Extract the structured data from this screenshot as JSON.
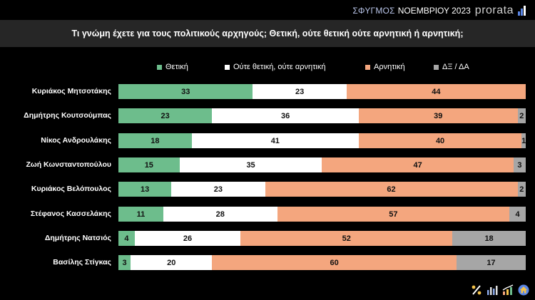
{
  "brand": {
    "prefix": "ΣΦΥΓΜΟΣ",
    "period": "ΝΟΕΜΒΡΙΟΥ 2023",
    "logo": "prorata"
  },
  "colors": {
    "positive": "#6dbd8c",
    "neutral": "#ffffff",
    "negative": "#f4a67e",
    "dk": "#a6a6a6"
  },
  "chart_data": {
    "type": "bar",
    "orientation": "horizontal",
    "stacked": true,
    "title": "Τι γνώμη έχετε για τους πολιτικούς αρχηγούς; Θετική, ούτε θετική ούτε αρνητική ή αρνητική;",
    "legend_position": "top",
    "categories": [
      "Κυριάκος Μητσοτάκης",
      "Δημήτρης Κουτσούμπας",
      "Νίκος Ανδρουλάκης",
      "Ζωή Κωνσταντοπούλου",
      "Κυριάκος Βελόπουλος",
      "Στέφανος Κασσελάκης",
      "Δημήτρης Νατσιός",
      "Βασίλης Στίγκας"
    ],
    "series": [
      {
        "name": "Θετική",
        "values": [
          33,
          23,
          18,
          15,
          13,
          11,
          4,
          3
        ]
      },
      {
        "name": "Ούτε θετική, ούτε αρνητική",
        "values": [
          23,
          36,
          41,
          35,
          23,
          28,
          26,
          20
        ]
      },
      {
        "name": "Αρνητική",
        "values": [
          44,
          39,
          40,
          47,
          62,
          57,
          52,
          60
        ]
      },
      {
        "name": "ΔΞ / ΔΑ",
        "values": [
          null,
          2,
          1,
          3,
          2,
          4,
          18,
          17
        ]
      }
    ]
  },
  "footer_icons": [
    "percent-icon",
    "bar-chart-icon",
    "growth-chart-icon",
    "home-icon"
  ]
}
